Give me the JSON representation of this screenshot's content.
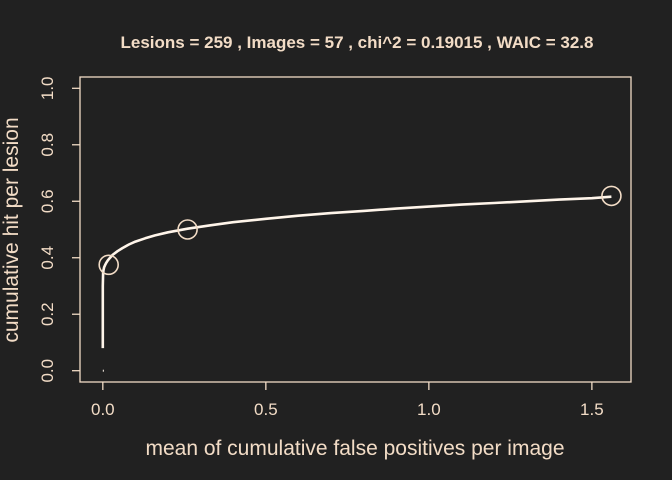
{
  "chart_data": {
    "type": "line",
    "title": "Lesions =  259 ,  Images =  57 , chi^2 = 0.19015 , WAIC = 32.8",
    "xlabel": "mean of cumulative false positives per image",
    "ylabel": "cumulative hit per lesion",
    "xlim": [
      -0.07,
      1.62
    ],
    "ylim": [
      -0.04,
      1.04
    ],
    "x_ticks": [
      "0.0",
      "0.5",
      "1.0",
      "1.5"
    ],
    "x_tick_values": [
      0,
      0.5,
      1.0,
      1.5
    ],
    "y_ticks": [
      "0.0",
      "0.2",
      "0.4",
      "0.6",
      "0.8",
      "1.0"
    ],
    "y_tick_values": [
      0,
      0.2,
      0.4,
      0.6,
      0.8,
      1.0
    ],
    "grid": false,
    "series": [
      {
        "kind": "curve",
        "x": [
          0.0,
          0.0,
          0.0,
          0.0005,
          0.001,
          0.002,
          0.004,
          0.007,
          0.01,
          0.015,
          0.02,
          0.03,
          0.045,
          0.06,
          0.08,
          0.1,
          0.13,
          0.16,
          0.2,
          0.26,
          0.33,
          0.4,
          0.5,
          0.6,
          0.7,
          0.8,
          0.9,
          1.0,
          1.1,
          1.2,
          1.3,
          1.4,
          1.5,
          1.56
        ],
        "y": [
          0.0,
          0.08,
          0.3,
          0.33,
          0.345,
          0.356,
          0.366,
          0.374,
          0.381,
          0.39,
          0.397,
          0.41,
          0.423,
          0.434,
          0.447,
          0.457,
          0.469,
          0.479,
          0.49,
          0.503,
          0.515,
          0.526,
          0.538,
          0.549,
          0.558,
          0.566,
          0.574,
          0.581,
          0.588,
          0.594,
          0.6,
          0.606,
          0.611,
          0.616
        ]
      },
      {
        "kind": "points",
        "x": [
          0.018,
          0.26,
          1.56
        ],
        "y": [
          0.375,
          0.5,
          0.619
        ]
      }
    ],
    "colors": {
      "background": "#212121",
      "foreground": "#f2dcc6",
      "curve": "#fff5ea"
    }
  }
}
